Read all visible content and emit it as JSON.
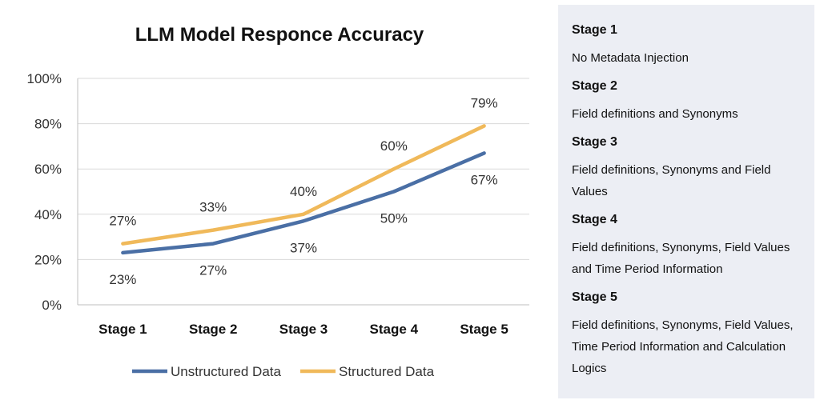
{
  "chart_data": {
    "type": "line",
    "title": "LLM Model Responce Accuracy",
    "categories": [
      "Stage 1",
      "Stage 2",
      "Stage 3",
      "Stage 4",
      "Stage 5"
    ],
    "yticks": [
      "0%",
      "20%",
      "40%",
      "60%",
      "80%",
      "100%"
    ],
    "ylim": [
      0,
      100
    ],
    "grid": true,
    "legend_position": "bottom",
    "series": [
      {
        "name": "Unstructured Data",
        "values": [
          23,
          27,
          37,
          50,
          67
        ],
        "labels": [
          "23%",
          "27%",
          "37%",
          "50%",
          "67%"
        ],
        "color": "#4a6fa5"
      },
      {
        "name": "Structured Data",
        "values": [
          27,
          33,
          40,
          60,
          79
        ],
        "labels": [
          "27%",
          "33%",
          "40%",
          "60%",
          "79%"
        ],
        "color": "#f0b95a"
      }
    ]
  },
  "stages_panel": {
    "background": "#eceef4",
    "items": [
      {
        "title": "Stage 1",
        "description": "No Metadata Injection"
      },
      {
        "title": "Stage 2",
        "description": "Field definitions and Synonyms"
      },
      {
        "title": "Stage 3",
        "description": "Field definitions, Synonyms and Field Values"
      },
      {
        "title": "Stage 4",
        "description": "Field definitions, Synonyms, Field Values and Time Period Information"
      },
      {
        "title": "Stage 5",
        "description": "Field definitions, Synonyms, Field Values, Time Period Information and Calculation Logics"
      }
    ]
  }
}
